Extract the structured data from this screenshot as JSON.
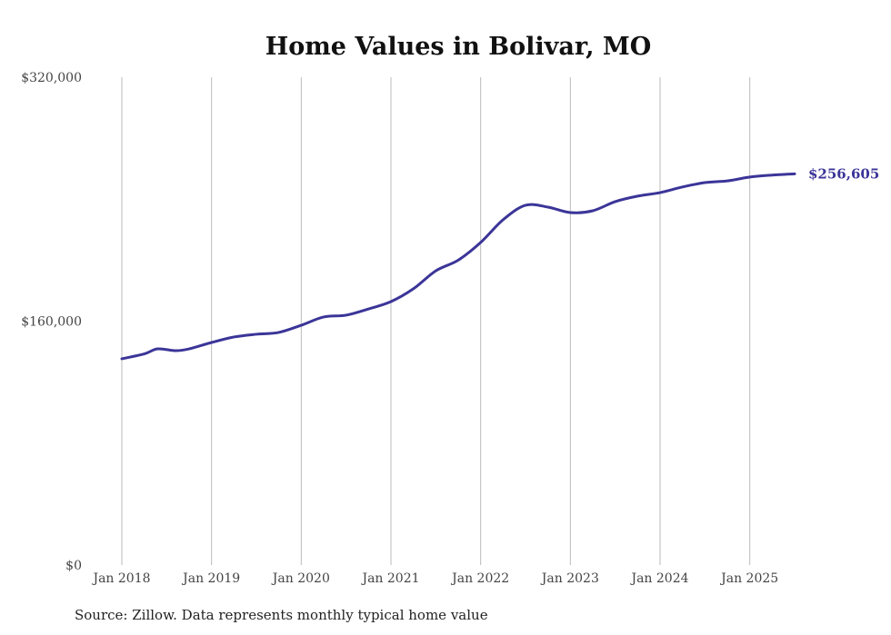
{
  "chart_data": {
    "type": "line",
    "title": "Home Values in Bolivar, MO",
    "xlabel": "",
    "ylabel": "",
    "ylim": [
      0,
      320000
    ],
    "xlim": [
      2018.0,
      2025.5
    ],
    "yticks": [
      {
        "value": 0,
        "label": "$0"
      },
      {
        "value": 160000,
        "label": "$160,000"
      },
      {
        "value": 320000,
        "label": "$320,000"
      }
    ],
    "xticks": [
      {
        "value": 2018,
        "label": "Jan 2018"
      },
      {
        "value": 2019,
        "label": "Jan 2019"
      },
      {
        "value": 2020,
        "label": "Jan 2020"
      },
      {
        "value": 2021,
        "label": "Jan 2021"
      },
      {
        "value": 2022,
        "label": "Jan 2022"
      },
      {
        "value": 2023,
        "label": "Jan 2023"
      },
      {
        "value": 2024,
        "label": "Jan 2024"
      },
      {
        "value": 2025,
        "label": "Jan 2025"
      }
    ],
    "grid": "vertical",
    "series": [
      {
        "name": "Typical home value",
        "color": "#3b3598",
        "x": [
          2018.0,
          2018.25,
          2018.4,
          2018.6,
          2018.75,
          2019.0,
          2019.25,
          2019.5,
          2019.75,
          2020.0,
          2020.25,
          2020.5,
          2020.75,
          2021.0,
          2021.25,
          2021.5,
          2021.75,
          2022.0,
          2022.25,
          2022.5,
          2022.75,
          2023.0,
          2023.25,
          2023.5,
          2023.75,
          2024.0,
          2024.25,
          2024.5,
          2024.75,
          2025.0,
          2025.25,
          2025.5
        ],
        "y": [
          135300,
          138500,
          141800,
          140600,
          141800,
          146000,
          149600,
          151400,
          152600,
          157300,
          162700,
          163900,
          168000,
          172800,
          181200,
          193000,
          200000,
          211600,
          226500,
          236000,
          234800,
          231200,
          232400,
          238400,
          242000,
          244300,
          248000,
          250900,
          252000,
          254500,
          255800,
          256605
        ]
      }
    ],
    "end_label": "$256,605"
  },
  "source": "Source: Zillow. Data represents monthly typical home value"
}
